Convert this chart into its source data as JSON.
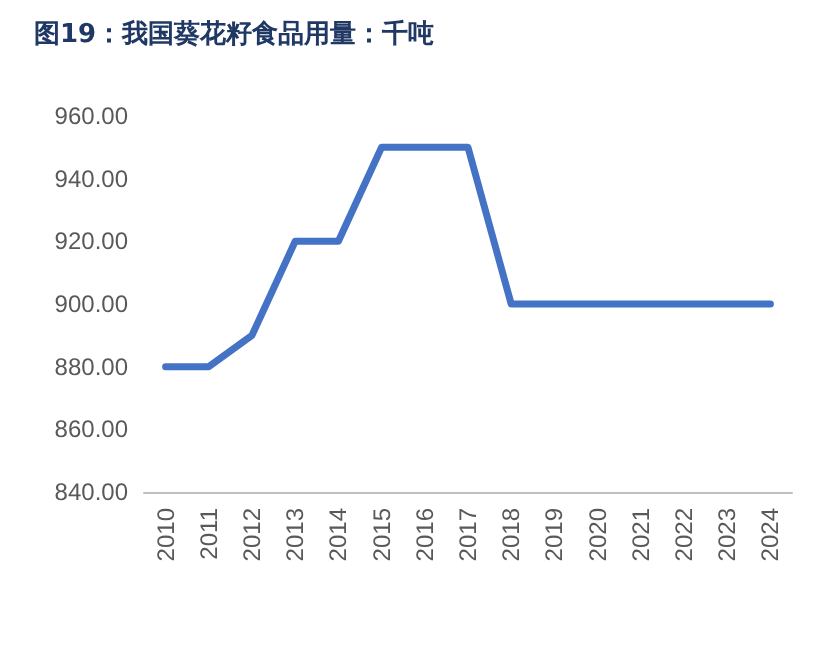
{
  "chart_data": {
    "type": "line",
    "title": "图19：我国葵花籽食品用量：千吨",
    "categories": [
      "2010",
      "2011",
      "2012",
      "2013",
      "2014",
      "2015",
      "2016",
      "2017",
      "2018",
      "2019",
      "2020",
      "2021",
      "2022",
      "2023",
      "2024"
    ],
    "series": [
      {
        "color": "#4472c4",
        "values": [
          880,
          880,
          890,
          920,
          920,
          950,
          950,
          950,
          900,
          900,
          900,
          900,
          900,
          900,
          900
        ]
      }
    ],
    "ylim": [
      840,
      960
    ],
    "yticks": [
      {
        "value": 840,
        "label": "840.00"
      },
      {
        "value": 860,
        "label": "860.00"
      },
      {
        "value": 880,
        "label": "880.00"
      },
      {
        "value": 900,
        "label": "900.00"
      },
      {
        "value": 920,
        "label": "920.00"
      },
      {
        "value": 940,
        "label": "940.00"
      },
      {
        "value": 960,
        "label": "960.00"
      }
    ],
    "grid": false,
    "marker": "none",
    "line_style": "solid"
  }
}
